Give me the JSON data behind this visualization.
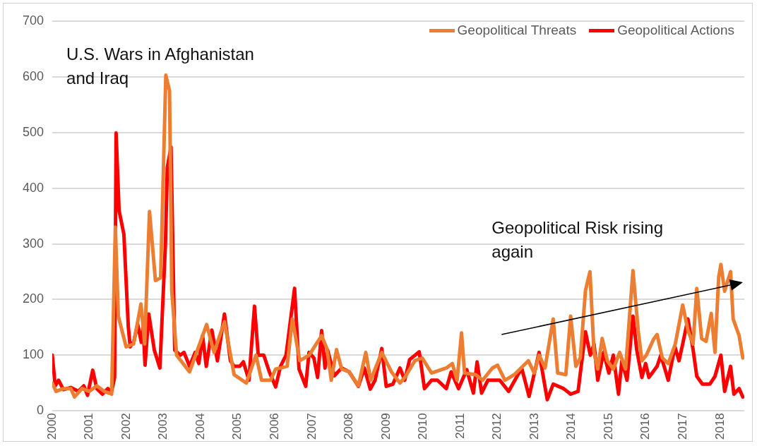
{
  "chart_data": {
    "type": "line",
    "legend": "top right",
    "grid": "y",
    "marker": "none",
    "line_style": "solid",
    "xlim": [
      2000,
      2018.65
    ],
    "xticks": [
      2000,
      2001,
      2002,
      2003,
      2004,
      2005,
      2006,
      2007,
      2008,
      2009,
      2010,
      2011,
      2012,
      2013,
      2014,
      2015,
      2016,
      2017,
      2018
    ],
    "ylim": [
      0,
      700
    ],
    "yticks": [
      0,
      100,
      200,
      300,
      400,
      500,
      600,
      700
    ],
    "annotations": [
      "U.S. Wars in Afghanistan and Iraq",
      "Geopolitical Risk rising again"
    ],
    "series": [
      {
        "name": "Geopolitical Threats",
        "color": "#ed7d31",
        "x": [
          2000,
          2000.1,
          2000.3,
          2000.5,
          2000.6,
          2000.8,
          2001,
          2001.2,
          2001.4,
          2001.6,
          2001.7,
          2001.78,
          2001.99,
          2002.19,
          2002.39,
          2002.49,
          2002.62,
          2002.78,
          2002.92,
          2003.06,
          2003.16,
          2003.22,
          2003.35,
          2003.7,
          2004.16,
          2004.36,
          2004.64,
          2004.9,
          2005.23,
          2005.49,
          2005.64,
          2005.88,
          2006.02,
          2006.33,
          2006.47,
          2006.67,
          2006.92,
          2007.26,
          2007.4,
          2007.52,
          2007.66,
          2007.8,
          2008.0,
          2008.25,
          2008.45,
          2008.58,
          2008.88,
          2009.14,
          2009.37,
          2009.5,
          2009.77,
          2009.97,
          2010.22,
          2010.62,
          2010.78,
          2010.91,
          2011.03,
          2011.11,
          2011.41,
          2011.6,
          2011.86,
          2012.0,
          2012.2,
          2012.45,
          2012.83,
          2012.99,
          2013.12,
          2013.28,
          2013.5,
          2013.62,
          2013.84,
          2013.97,
          2014.11,
          2014.23,
          2014.37,
          2014.49,
          2014.6,
          2014.7,
          2014.82,
          2014.96,
          2015.12,
          2015.29,
          2015.45,
          2015.65,
          2015.79,
          2015.89,
          2016.01,
          2016.2,
          2016.3,
          2016.44,
          2016.6,
          2016.79,
          2016.99,
          2017.13,
          2017.27,
          2017.37,
          2017.5,
          2017.62,
          2017.76,
          2017.86,
          2017.96,
          2018.02,
          2018.12,
          2018.28,
          2018.35,
          2018.51,
          2018.61
        ],
        "values": [
          50,
          35,
          40,
          40,
          25,
          40,
          35,
          45,
          35,
          30,
          330,
          170,
          115,
          120,
          192,
          120,
          358,
          234,
          239,
          603,
          575,
          216,
          100,
          70,
          155,
          105,
          160,
          65,
          50,
          100,
          55,
          55,
          75,
          80,
          165,
          90,
          100,
          135,
          112,
          55,
          110,
          75,
          70,
          45,
          105,
          55,
          105,
          70,
          50,
          60,
          90,
          95,
          68,
          77,
          85,
          55,
          140,
          68,
          65,
          55,
          77,
          82,
          55,
          65,
          90,
          68,
          100,
          77,
          165,
          68,
          65,
          170,
          80,
          95,
          216,
          250,
          105,
          75,
          130,
          90,
          75,
          105,
          75,
          252,
          145,
          90,
          100,
          128,
          137,
          95,
          85,
          120,
          190,
          145,
          120,
          220,
          130,
          125,
          175,
          105,
          240,
          263,
          215,
          250,
          165,
          135,
          95
        ]
      },
      {
        "name": "Geopolitical Actions",
        "color": "#ff0000",
        "x": [
          2000,
          2000.08,
          2000.17,
          2000.3,
          2000.5,
          2000.7,
          2000.85,
          2000.95,
          2001.09,
          2001.2,
          2001.35,
          2001.5,
          2001.6,
          2001.68,
          2001.72,
          2001.8,
          2001.93,
          2002.05,
          2002.1,
          2002.2,
          2002.3,
          2002.4,
          2002.45,
          2002.5,
          2002.6,
          2002.75,
          2002.9,
          2003.05,
          2003.1,
          2003.2,
          2003.3,
          2003.45,
          2003.55,
          2003.7,
          2003.85,
          2003.95,
          2004.05,
          2004.15,
          2004.3,
          2004.45,
          2004.64,
          2004.8,
          2004.9,
          2005.05,
          2005.15,
          2005.3,
          2005.45,
          2005.55,
          2005.7,
          2005.85,
          2006.02,
          2006.15,
          2006.3,
          2006.53,
          2006.65,
          2006.83,
          2006.92,
          2007.05,
          2007.15,
          2007.26,
          2007.35,
          2007.42,
          2007.6,
          2007.8,
          2008.0,
          2008.25,
          2008.41,
          2008.57,
          2008.7,
          2008.88,
          2009.0,
          2009.18,
          2009.37,
          2009.5,
          2009.63,
          2009.89,
          2010.03,
          2010.22,
          2010.38,
          2010.62,
          2010.75,
          2010.95,
          2011.17,
          2011.35,
          2011.45,
          2011.57,
          2011.74,
          2012.06,
          2012.3,
          2012.65,
          2012.85,
          2013.12,
          2013.34,
          2013.5,
          2013.78,
          2013.97,
          2014.17,
          2014.37,
          2014.5,
          2014.6,
          2014.7,
          2014.86,
          2015.0,
          2015.12,
          2015.26,
          2015.35,
          2015.49,
          2015.65,
          2015.75,
          2015.89,
          2015.99,
          2016.08,
          2016.3,
          2016.4,
          2016.6,
          2016.78,
          2016.89,
          2016.99,
          2017.13,
          2017.27,
          2017.37,
          2017.52,
          2017.72,
          2017.86,
          2018.02,
          2018.12,
          2018.28,
          2018.37,
          2018.51,
          2018.61
        ],
        "values": [
          100,
          45,
          55,
          38,
          42,
          35,
          45,
          28,
          73,
          40,
          30,
          40,
          35,
          60,
          499,
          360,
          317,
          150,
          115,
          125,
          156,
          123,
          150,
          82,
          174,
          109,
          77,
          300,
          437,
          474,
          109,
          100,
          105,
          80,
          105,
          85,
          135,
          80,
          145,
          90,
          174,
          90,
          80,
          80,
          88,
          55,
          188,
          100,
          100,
          70,
          43,
          80,
          100,
          220,
          75,
          44,
          105,
          95,
          60,
          144,
          77,
          109,
          63,
          77,
          70,
          44,
          77,
          39,
          55,
          112,
          44,
          48,
          77,
          55,
          92,
          106,
          40,
          55,
          55,
          40,
          70,
          40,
          74,
          32,
          88,
          32,
          55,
          55,
          35,
          77,
          26,
          105,
          20,
          48,
          40,
          30,
          35,
          142,
          100,
          120,
          55,
          105,
          68,
          100,
          30,
          90,
          55,
          170,
          110,
          60,
          85,
          60,
          80,
          100,
          55,
          115,
          90,
          120,
          165,
          110,
          62,
          48,
          48,
          62,
          100,
          35,
          80,
          30,
          40,
          25
        ]
      }
    ]
  }
}
